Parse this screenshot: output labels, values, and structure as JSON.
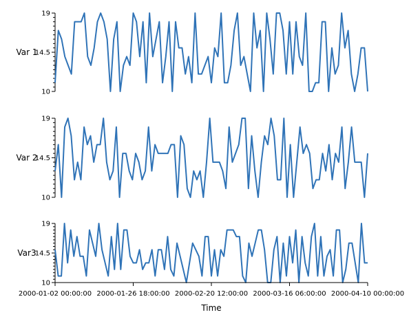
{
  "chart_data": {
    "type": "line",
    "line_color": "#2f73b7",
    "x_axis": {
      "label": "Time",
      "range": [
        "2000-01-02 00:00:00",
        "2000-04-10 00:00:00"
      ],
      "tick_labels": [
        "2000-01-02 00:00:00",
        "2000-01-26 18:00:00",
        "2000-02-20 12:00:00",
        "2000-03-16 06:00:00",
        "2000-04-10 00:00:00"
      ]
    },
    "panels": [
      {
        "ylabel": "Var 1",
        "ylim": [
          10,
          19
        ],
        "ytick_labels": [
          "10",
          "14.5",
          "19"
        ],
        "values": [
          11,
          17,
          16,
          14,
          13,
          12,
          18,
          18,
          18,
          19,
          14,
          13,
          15,
          18,
          19,
          18,
          16,
          10,
          16,
          18,
          10,
          13,
          14,
          13,
          19,
          18,
          14,
          18,
          11,
          19,
          14,
          16,
          18,
          11,
          14,
          18,
          10,
          18,
          15,
          15,
          12,
          14,
          11,
          19,
          12,
          12,
          13,
          14,
          11,
          15,
          14,
          19,
          11,
          11,
          13,
          17,
          19,
          13,
          14,
          12,
          10,
          19,
          15,
          17,
          10,
          19,
          16,
          12,
          19,
          19,
          17,
          12,
          18,
          12,
          18,
          14,
          13,
          19,
          10,
          10,
          11,
          11,
          18,
          18,
          10,
          15,
          12,
          13,
          19,
          15,
          17,
          12,
          10,
          12,
          15,
          15,
          10
        ]
      },
      {
        "ylabel": "Var 2",
        "ylim": [
          10,
          19
        ],
        "ytick_labels": [
          "10",
          "14.5",
          "19"
        ],
        "values": [
          13,
          16,
          10,
          18,
          19,
          17,
          12,
          14,
          12,
          18,
          16,
          17,
          14,
          16,
          16,
          19,
          14,
          12,
          13,
          18,
          10,
          15,
          15,
          13,
          12,
          15,
          14,
          12,
          13,
          18,
          13,
          16,
          15,
          15,
          15,
          15,
          16,
          16,
          10,
          17,
          16,
          11,
          10,
          13,
          12,
          13,
          10,
          14,
          19,
          14,
          14,
          14,
          13,
          11,
          18,
          14,
          15,
          16,
          19,
          19,
          11,
          17,
          13,
          10,
          14,
          17,
          16,
          19,
          17,
          12,
          12,
          19,
          10,
          16,
          10,
          14,
          18,
          15,
          16,
          15,
          11,
          12,
          12,
          15,
          13,
          16,
          12,
          15,
          14,
          18,
          11,
          14,
          18,
          14,
          14,
          14,
          10,
          15
        ]
      },
      {
        "ylabel": "Var3",
        "ylim": [
          10,
          19
        ],
        "ytick_labels": [
          "10",
          "14.5",
          "19"
        ],
        "values": [
          15,
          11,
          11,
          19,
          13,
          18,
          14,
          17,
          14,
          14,
          11,
          18,
          16,
          14,
          19,
          15,
          13,
          11,
          17,
          12,
          19,
          12,
          18,
          18,
          14,
          13,
          13,
          15,
          12,
          13,
          13,
          15,
          11,
          15,
          15,
          12,
          17,
          12,
          11,
          16,
          14,
          12,
          10,
          13,
          16,
          15,
          14,
          11,
          17,
          17,
          11,
          15,
          11,
          15,
          14,
          18,
          18,
          18,
          17,
          17,
          11,
          10,
          16,
          14,
          16,
          18,
          18,
          15,
          10,
          10,
          15,
          17,
          10,
          16,
          11,
          17,
          13,
          18,
          10,
          17,
          13,
          11,
          17,
          19,
          11,
          17,
          11,
          14,
          15,
          11,
          18,
          18,
          10,
          12,
          16,
          16,
          13,
          10,
          19,
          13,
          13
        ]
      }
    ]
  }
}
